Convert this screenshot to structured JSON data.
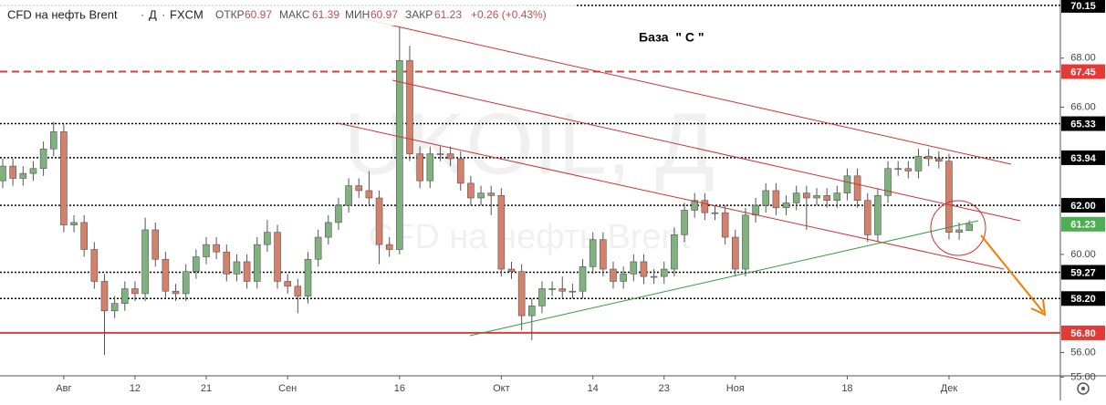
{
  "header": {
    "symbol": "CFD на нефть Brent",
    "interval": "Д",
    "exchange": "FXCM",
    "open_label": "ОТКР",
    "high_label": "МАКС",
    "low_label": "МИН",
    "close_label": "ЗАКР",
    "change": "+0.26 (+0.43%)"
  },
  "watermark": {
    "ticker": "UKOIL, Д",
    "name": "CFD на нефть Brent"
  },
  "chart_data": {
    "type": "candlestick",
    "annotation": "База  \" С \"",
    "categories": [
      null,
      null,
      null,
      null,
      null,
      null,
      "Авг",
      null,
      null,
      null,
      null,
      null,
      null,
      "12",
      null,
      null,
      null,
      null,
      null,
      null,
      "21",
      null,
      null,
      null,
      null,
      null,
      null,
      null,
      "Сен",
      null,
      null,
      null,
      null,
      null,
      null,
      null,
      null,
      null,
      null,
      "16",
      null,
      null,
      null,
      null,
      null,
      null,
      null,
      null,
      null,
      "Окт",
      null,
      null,
      null,
      null,
      null,
      null,
      null,
      null,
      "14",
      null,
      null,
      null,
      null,
      null,
      null,
      "23",
      null,
      null,
      null,
      null,
      null,
      null,
      "Ноя",
      null,
      null,
      null,
      null,
      null,
      null,
      null,
      null,
      null,
      null,
      "18",
      null,
      null,
      null,
      null,
      null,
      null,
      null,
      null,
      null,
      "Дек",
      null,
      null
    ],
    "open": [
      63.0,
      63.6,
      63.1,
      63.3,
      63.5,
      64.3,
      65.0,
      61.2,
      61.3,
      60.2,
      58.9,
      57.7,
      58.0,
      58.6,
      58.4,
      61.0,
      59.8,
      58.5,
      58.4,
      59.3,
      59.9,
      60.4,
      60.1,
      59.2,
      59.7,
      58.9,
      60.4,
      60.9,
      58.9,
      58.7,
      58.3,
      59.8,
      60.7,
      61.3,
      62.0,
      62.8,
      62.6,
      62.3,
      60.4,
      60.2,
      67.9,
      64.1,
      63.0,
      64.1,
      64.1,
      63.9,
      62.9,
      62.3,
      62.5,
      62.4,
      59.4,
      59.3,
      57.5,
      57.9,
      58.6,
      58.6,
      58.5,
      58.5,
      59.5,
      60.6,
      59.4,
      58.9,
      59.2,
      59.7,
      59.1,
      59.1,
      59.4,
      60.8,
      61.8,
      62.2,
      61.7,
      61.7,
      60.7,
      59.4,
      61.6,
      62.0,
      62.6,
      61.9,
      62.1,
      62.5,
      62.3,
      62.4,
      62.2,
      62.5,
      63.2,
      62.2,
      60.8,
      62.4,
      63.5,
      63.5,
      63.4,
      64.0,
      63.9,
      63.8,
      60.9,
      60.97
    ],
    "high": [
      63.9,
      63.9,
      63.6,
      63.8,
      64.6,
      65.4,
      65.3,
      61.6,
      61.6,
      60.5,
      59.2,
      58.3,
      58.9,
      58.9,
      61.5,
      61.3,
      60.1,
      58.8,
      59.6,
      60.2,
      60.7,
      60.7,
      60.4,
      60.0,
      60.0,
      60.7,
      61.4,
      61.2,
      59.2,
      59.0,
      60.1,
      61.0,
      61.6,
      62.3,
      63.1,
      63.1,
      63.4,
      62.6,
      60.7,
      69.3,
      68.5,
      64.4,
      64.4,
      64.4,
      64.4,
      64.2,
      63.2,
      62.8,
      62.8,
      62.7,
      59.7,
      59.6,
      58.2,
      58.9,
      58.9,
      59.1,
      58.8,
      59.8,
      60.9,
      60.9,
      59.7,
      59.5,
      60.0,
      60.0,
      59.4,
      59.7,
      61.1,
      62.1,
      62.5,
      62.5,
      62.0,
      62.0,
      61.0,
      61.9,
      62.3,
      62.9,
      62.9,
      62.4,
      62.8,
      62.8,
      62.7,
      62.7,
      62.8,
      63.5,
      63.5,
      62.5,
      62.7,
      63.8,
      63.8,
      63.8,
      64.3,
      64.3,
      64.2,
      64.1,
      61.3,
      61.39
    ],
    "low": [
      62.7,
      62.8,
      62.8,
      63.0,
      63.2,
      64.0,
      60.9,
      60.9,
      59.9,
      58.6,
      55.9,
      57.4,
      57.7,
      58.1,
      58.1,
      59.5,
      58.2,
      58.1,
      58.1,
      59.0,
      59.6,
      59.8,
      58.9,
      58.9,
      58.6,
      58.6,
      60.1,
      58.6,
      58.4,
      57.6,
      58.0,
      59.5,
      60.4,
      61.0,
      61.7,
      62.3,
      62.0,
      59.6,
      59.9,
      60.0,
      63.8,
      62.7,
      62.7,
      63.8,
      63.6,
      62.6,
      62.0,
      62.0,
      61.6,
      59.1,
      59.0,
      56.9,
      56.5,
      57.6,
      58.3,
      58.2,
      58.2,
      58.2,
      59.2,
      59.1,
      58.6,
      58.6,
      58.9,
      58.8,
      58.8,
      58.8,
      59.1,
      60.5,
      61.5,
      61.4,
      61.4,
      60.4,
      59.1,
      59.1,
      61.3,
      61.7,
      61.6,
      61.6,
      61.8,
      61.0,
      62.0,
      61.9,
      61.9,
      62.2,
      61.9,
      60.5,
      60.5,
      62.1,
      63.2,
      63.1,
      63.1,
      63.6,
      63.5,
      60.6,
      60.6,
      60.97
    ],
    "close": [
      63.6,
      63.1,
      63.3,
      63.5,
      64.3,
      65.0,
      61.2,
      61.3,
      60.2,
      58.9,
      57.7,
      58.0,
      58.6,
      58.4,
      61.0,
      59.8,
      58.5,
      58.4,
      59.3,
      59.9,
      60.4,
      60.1,
      59.2,
      59.7,
      58.9,
      60.4,
      60.9,
      58.9,
      58.7,
      58.3,
      59.8,
      60.7,
      61.3,
      62.0,
      62.8,
      62.6,
      62.3,
      60.4,
      60.2,
      67.9,
      64.1,
      63.0,
      64.1,
      64.1,
      63.9,
      62.9,
      62.3,
      62.5,
      62.4,
      59.4,
      59.3,
      57.5,
      57.9,
      58.6,
      58.6,
      58.5,
      58.5,
      59.5,
      60.6,
      59.4,
      58.9,
      59.2,
      59.7,
      59.1,
      59.1,
      59.4,
      60.8,
      61.8,
      62.2,
      61.7,
      61.7,
      60.7,
      59.4,
      61.6,
      62.0,
      62.6,
      61.9,
      62.1,
      62.5,
      62.3,
      62.4,
      62.2,
      62.5,
      63.2,
      62.2,
      60.8,
      62.4,
      63.5,
      63.5,
      63.4,
      64.0,
      63.9,
      63.8,
      60.9,
      61.0,
      61.23
    ],
    "up_color": "#7fb27f",
    "down_color": "#d4806a",
    "last_price_color": "#4caf50",
    "ylim": [
      55.05,
      70.37
    ],
    "yticks": [
      {
        "value": 55,
        "label": "55.00"
      },
      {
        "value": 56,
        "label": "56.00"
      },
      {
        "value": 60,
        "label": "60.00"
      },
      {
        "value": 66,
        "label": "66.00"
      },
      {
        "value": 68,
        "label": "68.00"
      }
    ],
    "levels": [
      {
        "value": 70.15,
        "color": "#000000",
        "style": "dotted"
      },
      {
        "value": 67.45,
        "color": "#e53935",
        "style": "dashed"
      },
      {
        "value": 65.33,
        "color": "#000000",
        "style": "dotted"
      },
      {
        "value": 63.94,
        "color": "#000000",
        "style": "dotted"
      },
      {
        "value": 62,
        "label": "62.00",
        "color": "#000000",
        "style": "dotted"
      },
      {
        "value": 59.27,
        "color": "#000000",
        "style": "dotted"
      },
      {
        "value": 58.2,
        "label": "58.20",
        "color": "#000000",
        "style": "dotted"
      },
      {
        "value": 56.8,
        "label": "56.80",
        "color": "#e53935",
        "style": "solid"
      }
    ]
  }
}
